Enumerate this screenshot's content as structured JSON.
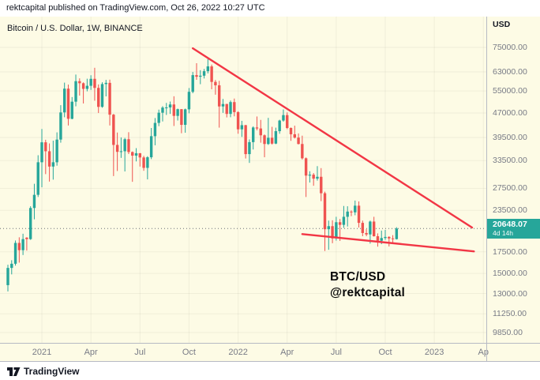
{
  "attribution": "rektcapital published on TradingView.com, Oct 26, 2022 10:27 UTC",
  "chart": {
    "title": "Bitcoin / U.S. Dollar, 1W, BINANCE"
  },
  "annotation": {
    "line1": "BTC/USD",
    "line2": "@rektcapital"
  },
  "price_axis": {
    "currency": "USD",
    "ticks": [
      {
        "value": 75000,
        "label": "75000.00"
      },
      {
        "value": 63000,
        "label": "63000.00"
      },
      {
        "value": 55000,
        "label": "55000.00"
      },
      {
        "value": 47000,
        "label": "47000.00"
      },
      {
        "value": 39500,
        "label": "39500.00"
      },
      {
        "value": 33500,
        "label": "33500.00"
      },
      {
        "value": 27500,
        "label": "27500.00"
      },
      {
        "value": 23500,
        "label": "23500.00"
      },
      {
        "value": 17500,
        "label": "17500.00"
      },
      {
        "value": 15000,
        "label": "15000.00"
      },
      {
        "value": 13000,
        "label": "13000.00"
      },
      {
        "value": 11250,
        "label": "11250.00"
      },
      {
        "value": 9850,
        "label": "9850.00"
      }
    ],
    "last_price": {
      "label": "20648.07",
      "countdown": "4d 14h"
    }
  },
  "time_axis": {
    "ticks": [
      {
        "week": 9,
        "label": "2021"
      },
      {
        "week": 22,
        "label": "Apr"
      },
      {
        "week": 35,
        "label": "Jul"
      },
      {
        "week": 48,
        "label": "Oct"
      },
      {
        "week": 61,
        "label": "2022"
      },
      {
        "week": 74,
        "label": "Apr"
      },
      {
        "week": 87,
        "label": "Jul"
      },
      {
        "week": 100,
        "label": "Oct"
      },
      {
        "week": 113,
        "label": "2023"
      },
      {
        "week": 126,
        "label": "Ap"
      }
    ]
  },
  "footer": {
    "brand": "TradingView"
  },
  "colors": {
    "chart_bg": "#FDFBE5",
    "up": "#26A69A",
    "down": "#EF5350",
    "trendline": "#F23645",
    "axis_text": "#787B86",
    "badge_bg": "#26A69A",
    "separator": "#B7BAC4",
    "grid": "rgba(0,0,0,0.05)",
    "last_price_line": "#6b6e76"
  },
  "chart_data": {
    "type": "candlestick",
    "symbol": "BTC/USD",
    "interval": "1W",
    "exchange": "BINANCE",
    "scale": "log",
    "start_week": "2020-11-02",
    "interval_days": 7,
    "last_price": 20648.07,
    "visible_price_range": [
      9850,
      75000
    ],
    "candles": [
      [
        13800,
        15960,
        13200,
        15600
      ],
      [
        15600,
        16480,
        14900,
        16070
      ],
      [
        16070,
        18965,
        15860,
        18640
      ],
      [
        18640,
        19400,
        16200,
        17700
      ],
      [
        17700,
        19900,
        17100,
        19150
      ],
      [
        19350,
        19420,
        17650,
        19150
      ],
      [
        19150,
        24200,
        19050,
        23900
      ],
      [
        23900,
        28400,
        22050,
        26250
      ],
      [
        26250,
        34800,
        25850,
        33100
      ],
      [
        33100,
        41950,
        27700,
        38150
      ],
      [
        38150,
        38850,
        30420,
        35800
      ],
      [
        35800,
        37850,
        28850,
        32100
      ],
      [
        32100,
        38600,
        29250,
        33100
      ],
      [
        33100,
        40950,
        32300,
        38900
      ],
      [
        38900,
        49700,
        38050,
        47200
      ],
      [
        47200,
        58350,
        45600,
        55900
      ],
      [
        55900,
        57550,
        43000,
        45100
      ],
      [
        45100,
        52650,
        44950,
        50950
      ],
      [
        50950,
        61800,
        49300,
        58950
      ],
      [
        58950,
        60150,
        53200,
        58100
      ],
      [
        58100,
        58450,
        50300,
        55800
      ],
      [
        55800,
        60000,
        54850,
        57050
      ],
      [
        57050,
        61500,
        55400,
        59950
      ],
      [
        59950,
        64850,
        51300,
        56200
      ],
      [
        56200,
        57600,
        47000,
        49100
      ],
      [
        49100,
        58500,
        48800,
        57750
      ],
      [
        57750,
        59500,
        52900,
        58250
      ],
      [
        58250,
        59600,
        43000,
        46450
      ],
      [
        46450,
        46700,
        30000,
        37450
      ],
      [
        37450,
        40900,
        31100,
        35650
      ],
      [
        35650,
        39500,
        34150,
        35800
      ],
      [
        35800,
        39380,
        31000,
        39000
      ],
      [
        39000,
        41000,
        35100,
        35600
      ],
      [
        35600,
        35750,
        28800,
        34700
      ],
      [
        34700,
        36600,
        33300,
        35300
      ],
      [
        35300,
        35350,
        32100,
        34250
      ],
      [
        34250,
        34650,
        31150,
        31800
      ],
      [
        31800,
        34550,
        29300,
        34300
      ],
      [
        34300,
        42250,
        33850,
        39850
      ],
      [
        39850,
        45350,
        37350,
        43800
      ],
      [
        43800,
        48150,
        42800,
        47100
      ],
      [
        47100,
        49350,
        44250,
        48850
      ],
      [
        48850,
        50500,
        46350,
        48900
      ],
      [
        48900,
        51000,
        46700,
        49950
      ],
      [
        49950,
        52950,
        42850,
        46050
      ],
      [
        46050,
        48500,
        44550,
        48300
      ],
      [
        48300,
        48350,
        40700,
        43200
      ],
      [
        43200,
        48500,
        40850,
        48250
      ],
      [
        48250,
        56150,
        46900,
        54650
      ],
      [
        54650,
        62950,
        54100,
        61550
      ],
      [
        61550,
        67000,
        59550,
        60850
      ],
      [
        60850,
        63750,
        57700,
        61300
      ],
      [
        61300,
        64300,
        60100,
        63300
      ],
      [
        63300,
        69000,
        62300,
        65500
      ],
      [
        65500,
        66350,
        55650,
        58650
      ],
      [
        58650,
        59450,
        53550,
        57250
      ],
      [
        57250,
        59100,
        42350,
        49250
      ],
      [
        49250,
        51950,
        47050,
        50100
      ],
      [
        50100,
        50200,
        45550,
        46700
      ],
      [
        46700,
        51375,
        45600,
        50800
      ],
      [
        50800,
        52100,
        45900,
        47300
      ],
      [
        47300,
        47600,
        40550,
        41850
      ],
      [
        41850,
        44450,
        39650,
        43100
      ],
      [
        43100,
        43200,
        34000,
        35075
      ],
      [
        35075,
        38950,
        32950,
        38200
      ],
      [
        38200,
        42750,
        36250,
        42400
      ],
      [
        42400,
        45850,
        41550,
        42100
      ],
      [
        42100,
        44750,
        38050,
        40100
      ],
      [
        40100,
        40350,
        34300,
        37700
      ],
      [
        37700,
        45400,
        37450,
        39400
      ],
      [
        39400,
        42600,
        37550,
        37800
      ],
      [
        37800,
        42350,
        37650,
        41300
      ],
      [
        41300,
        44800,
        40550,
        44550
      ],
      [
        44550,
        48200,
        44200,
        46300
      ],
      [
        46300,
        47200,
        41900,
        42250
      ],
      [
        42250,
        42400,
        38550,
        40400
      ],
      [
        40400,
        42950,
        39200,
        39450
      ],
      [
        39450,
        40650,
        37580,
        37700
      ],
      [
        37700,
        40000,
        33750,
        34050
      ],
      [
        34050,
        34250,
        25850,
        30100
      ],
      [
        30100,
        31050,
        28650,
        30300
      ],
      [
        30300,
        30650,
        28000,
        29450
      ],
      [
        29450,
        32200,
        29050,
        29850
      ],
      [
        29850,
        31750,
        25100,
        26550
      ],
      [
        26550,
        26850,
        17600,
        20550
      ],
      [
        20550,
        21850,
        17750,
        21000
      ],
      [
        21000,
        21900,
        18600,
        19250
      ],
      [
        19250,
        22450,
        18950,
        21600
      ],
      [
        21600,
        22100,
        18900,
        21200
      ],
      [
        21200,
        24250,
        20750,
        22450
      ],
      [
        22450,
        24200,
        20950,
        23300
      ],
      [
        23300,
        23500,
        22550,
        23175
      ],
      [
        23175,
        25200,
        22700,
        24300
      ],
      [
        24300,
        25050,
        20800,
        21500
      ],
      [
        21500,
        21850,
        19550,
        20000
      ],
      [
        20000,
        20550,
        19550,
        19800
      ],
      [
        19800,
        21850,
        18550,
        21700
      ],
      [
        21700,
        22450,
        19500,
        19550
      ],
      [
        19550,
        19950,
        18150,
        18925
      ],
      [
        18925,
        20350,
        18475,
        19300
      ],
      [
        19300,
        20450,
        19050,
        19450
      ],
      [
        19450,
        19550,
        18175,
        19250
      ],
      [
        19250,
        19700,
        18650,
        19150
      ],
      [
        19150,
        20850,
        19100,
        20648.07
      ]
    ],
    "trendlines": [
      {
        "name": "upper-resistance",
        "from": {
          "week": 49,
          "price": 74500
        },
        "to": {
          "week": 123,
          "price": 20800
        }
      },
      {
        "name": "lower-support",
        "from": {
          "week": 78,
          "price": 19850
        },
        "to": {
          "week": 123.5,
          "price": 17550
        }
      }
    ]
  }
}
